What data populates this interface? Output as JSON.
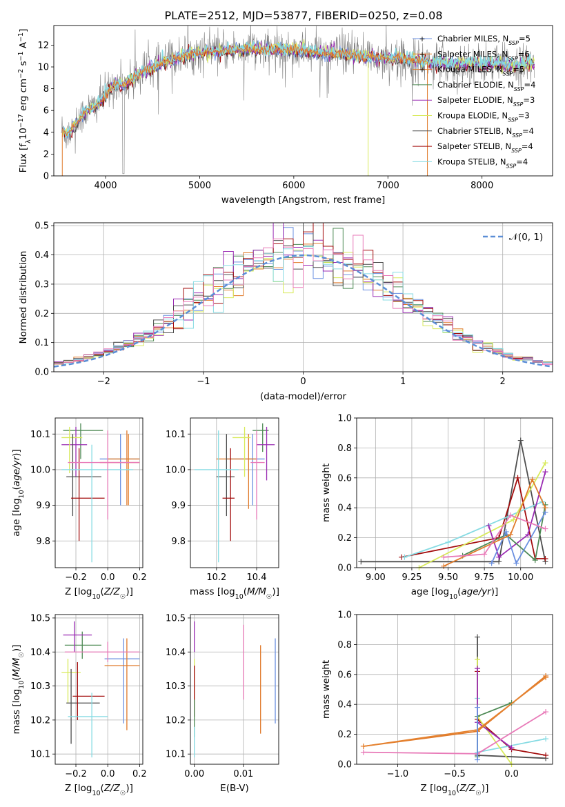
{
  "title": "PLATE=2512, MJD=53877, FIBERID=0250, z=0.08",
  "colors": {
    "Chabrier MILES": "#6a8fe0",
    "Salpeter MILES": "#e5822f",
    "Kroupa MILES": "#e07a2a",
    "Chabrier ELODIE": "#4e8a55",
    "Salpeter ELODIE": "#9a2bb3",
    "Kroupa ELODIE": "#d8ea5a",
    "Chabrier STELIB": "#4d4d4d",
    "Salpeter STELIB": "#a30d0d",
    "Kroupa STELIB": "#86dbe3",
    "pink": "#e87ab8",
    "normal": "#5b8ed6",
    "grid": "#b0b0b0"
  },
  "chart_data": [
    {
      "type": "line",
      "panel": "spectrum",
      "xlabel": "wavelength [Angstrom, rest frame]",
      "ylabel": "Flux [f_λ10^-17 erg cm^-2 s^-1 A^-1]",
      "xlim": [
        3450,
        8750
      ],
      "ylim": [
        0,
        13.8
      ],
      "xticks": [
        "4000",
        "5000",
        "6000",
        "7000",
        "8000"
      ],
      "yticks": [
        "0",
        "2",
        "4",
        "6",
        "8",
        "10",
        "12"
      ],
      "continuum_x": [
        3550,
        3600,
        3700,
        3800,
        3900,
        4000,
        4100,
        4200,
        4300,
        4400,
        4500,
        4700,
        4900,
        5100,
        5300,
        5500,
        5700,
        5900,
        6100,
        6300,
        6500,
        6700,
        6900,
        7100,
        7300,
        7500,
        7700,
        7900,
        8100,
        8300,
        8500
      ],
      "continuum_y": [
        4.2,
        3.8,
        5.0,
        6.0,
        6.4,
        7.5,
        8.5,
        8.4,
        9.0,
        9.6,
        10.0,
        10.7,
        11.2,
        11.4,
        11.5,
        11.7,
        11.6,
        11.6,
        11.5,
        11.3,
        11.2,
        11.0,
        10.8,
        10.8,
        10.6,
        10.4,
        10.3,
        10.4,
        10.3,
        10.2,
        10.3
      ],
      "legend": [
        {
          "label": "Chabrier MILES, N",
          "sub": "SSP",
          "eq": "=5"
        },
        {
          "label": "Salpeter MILES, N",
          "sub": "SSP",
          "eq": "=6"
        },
        {
          "label": "Kroupa MILES, N",
          "sub": "SSP",
          "eq": "=5"
        },
        {
          "label": "Chabrier ELODIE, N",
          "sub": "SSP",
          "eq": "=4"
        },
        {
          "label": "Salpeter ELODIE, N",
          "sub": "SSP",
          "eq": "=3"
        },
        {
          "label": "Kroupa ELODIE, N",
          "sub": "SSP",
          "eq": "=3"
        },
        {
          "label": "Chabrier STELIB, N",
          "sub": "SSP",
          "eq": "=4"
        },
        {
          "label": "Salpeter STELIB, N",
          "sub": "SSP",
          "eq": "=4"
        },
        {
          "label": "Kroupa STELIB, N",
          "sub": "SSP",
          "eq": "=4"
        }
      ]
    },
    {
      "type": "histogram",
      "panel": "residuals",
      "xlabel": "(data-model)/error",
      "ylabel": "Normed distribution",
      "xlim": [
        -2.5,
        2.5
      ],
      "ylim": [
        0,
        0.51
      ],
      "xticks": [
        "−2",
        "−1",
        "0",
        "1",
        "2"
      ],
      "yticks": [
        "0.0",
        "0.1",
        "0.2",
        "0.3",
        "0.4",
        "0.5"
      ],
      "legend": "𝒩(0, 1)",
      "bin_width": 0.1,
      "reference_curve": "standard normal"
    },
    {
      "type": "scatter",
      "panel": "age_vs_Z",
      "xlabel": "Z [log10(Z/Z☉)]",
      "ylabel": "age [log10(age/yr)]",
      "xlim": [
        -0.33,
        0.22
      ],
      "ylim": [
        9.725,
        10.145
      ],
      "xticks": [
        "−0.2",
        "0.0",
        "0.2"
      ],
      "yticks": [
        "9.8",
        "9.9",
        "10.0",
        "10.1"
      ],
      "points": [
        {
          "series": "Chabrier MILES",
          "x": 0.08,
          "y": 10.03,
          "x0": -0.05,
          "x1": 0.2,
          "y0": 9.9,
          "y1": 10.1
        },
        {
          "series": "Salpeter MILES",
          "x": 0.13,
          "y": 10.03,
          "x0": 0.0,
          "x1": 0.2,
          "y0": 9.9,
          "y1": 10.1
        },
        {
          "series": "Kroupa MILES",
          "x": 0.12,
          "y": 10.02,
          "x0": -0.05,
          "x1": 0.2,
          "y0": 9.9,
          "y1": 10.11
        },
        {
          "series": "Chabrier ELODIE",
          "x": -0.17,
          "y": 10.11,
          "x0": -0.28,
          "x1": -0.03,
          "y0": 10.03,
          "y1": 10.13
        },
        {
          "series": "Salpeter ELODIE",
          "x": -0.2,
          "y": 10.07,
          "x0": -0.29,
          "x1": -0.13,
          "y0": 9.98,
          "y1": 10.12
        },
        {
          "series": "Kroupa ELODIE",
          "x": -0.24,
          "y": 10.09,
          "x0": -0.29,
          "x1": -0.16,
          "y0": 9.99,
          "y1": 10.12
        },
        {
          "series": "Chabrier STELIB",
          "x": -0.22,
          "y": 9.98,
          "x0": -0.26,
          "x1": -0.04,
          "y0": 9.87,
          "y1": 10.1
        },
        {
          "series": "Salpeter STELIB",
          "x": -0.18,
          "y": 9.92,
          "x0": -0.23,
          "x1": -0.02,
          "y0": 9.8,
          "y1": 10.06
        },
        {
          "series": "Kroupa STELIB",
          "x": -0.1,
          "y": 10.0,
          "x0": -0.29,
          "x1": 0.16,
          "y0": 9.74,
          "y1": 10.07
        },
        {
          "series": "pink",
          "x": 0.0,
          "y": 10.02,
          "x0": -0.25,
          "x1": 0.2,
          "y0": 9.86,
          "y1": 10.11
        }
      ]
    },
    {
      "type": "scatter",
      "panel": "age_vs_mass",
      "xlabel": "mass [log10(M/M☉)]",
      "ylabel": "",
      "xlim": [
        10.07,
        10.51
      ],
      "ylim": [
        9.725,
        10.145
      ],
      "xticks": [
        "10.2",
        "10.4"
      ],
      "yticks": [
        "9.8",
        "9.9",
        "10.0",
        "10.1"
      ],
      "points": [
        {
          "series": "Chabrier MILES",
          "x": 10.38,
          "y": 10.03,
          "x0": 10.25,
          "x1": 10.44,
          "y0": 9.9,
          "y1": 10.1
        },
        {
          "series": "Kroupa MILES",
          "x": 10.36,
          "y": 10.03,
          "x0": 10.2,
          "x1": 10.4,
          "y0": 9.89,
          "y1": 10.1
        },
        {
          "series": "Chabrier ELODIE",
          "x": 10.43,
          "y": 10.11,
          "x0": 10.38,
          "x1": 10.46,
          "y0": 10.05,
          "y1": 10.13
        },
        {
          "series": "Salpeter ELODIE",
          "x": 10.45,
          "y": 10.07,
          "x0": 10.4,
          "x1": 10.49,
          "y0": 9.97,
          "y1": 10.12
        },
        {
          "series": "Kroupa ELODIE",
          "x": 10.34,
          "y": 10.09,
          "x0": 10.28,
          "x1": 10.37,
          "y0": 9.98,
          "y1": 10.12
        },
        {
          "series": "Chabrier STELIB",
          "x": 10.25,
          "y": 9.98,
          "x0": 10.2,
          "x1": 10.29,
          "y0": 9.87,
          "y1": 10.1
        },
        {
          "series": "Salpeter STELIB",
          "x": 10.27,
          "y": 9.92,
          "x0": 10.23,
          "x1": 10.29,
          "y0": 9.8,
          "y1": 10.06
        },
        {
          "series": "Kroupa STELIB",
          "x": 10.21,
          "y": 10.0,
          "x0": 10.09,
          "x1": 10.31,
          "y0": 9.74,
          "y1": 10.11
        },
        {
          "series": "pink",
          "x": 10.4,
          "y": 10.02,
          "x0": 10.37,
          "x1": 10.44,
          "y0": 9.86,
          "y1": 10.11
        }
      ]
    },
    {
      "type": "line",
      "panel": "weight_vs_age",
      "xlabel": "age [log10(age/yr)]",
      "ylabel": "mass weight",
      "xlim": [
        8.87,
        10.22
      ],
      "ylim": [
        0,
        1.0
      ],
      "xticks": [
        "9.00",
        "9.25",
        "9.50",
        "9.75",
        "10.00"
      ],
      "yticks": [
        "0.0",
        "0.2",
        "0.4",
        "0.6",
        "0.8",
        "1.0"
      ],
      "series": [
        {
          "name": "Chabrier STELIB",
          "x": [
            8.9,
            9.85,
            10.0,
            10.17
          ],
          "y": [
            0.04,
            0.04,
            0.85,
            0.04
          ]
        },
        {
          "name": "Salpeter STELIB",
          "x": [
            9.18,
            9.85,
            9.98,
            10.1,
            10.17
          ],
          "y": [
            0.07,
            0.2,
            0.6,
            0.06,
            0.06
          ]
        },
        {
          "name": "Kroupa STELIB",
          "x": [
            9.2,
            9.5,
            10.15,
            10.17
          ],
          "y": [
            0.07,
            0.17,
            0.44,
            0.4
          ]
        },
        {
          "name": "Kroupa ELODIE",
          "x": [
            9.3,
            9.95,
            10.17
          ],
          "y": [
            0.0,
            0.32,
            0.7
          ]
        },
        {
          "name": "Salpeter ELODIE",
          "x": [
            9.78,
            9.85,
            10.05,
            10.17
          ],
          "y": [
            0.28,
            0.07,
            0.22,
            0.64
          ]
        },
        {
          "name": "Chabrier ELODIE",
          "x": [
            9.6,
            9.9,
            10.1,
            10.17
          ],
          "y": [
            0.08,
            0.22,
            0.05,
            0.42
          ]
        },
        {
          "name": "Chabrier MILES",
          "x": [
            9.8,
            9.9,
            9.97,
            10.17
          ],
          "y": [
            0.03,
            0.24,
            0.03,
            0.37
          ]
        },
        {
          "name": "Kroupa MILES",
          "x": [
            9.47,
            9.93,
            10.08,
            10.17
          ],
          "y": [
            0.01,
            0.22,
            0.59,
            0.4
          ]
        },
        {
          "name": "pink",
          "x": [
            9.47,
            9.75,
            9.93,
            10.17
          ],
          "y": [
            0.07,
            0.09,
            0.35,
            0.26
          ]
        }
      ]
    },
    {
      "type": "scatter",
      "panel": "mass_vs_Z",
      "xlabel": "Z [log10(Z/Z☉)]",
      "ylabel": "mass [log10(M/M☉)]",
      "xlim": [
        -0.33,
        0.22
      ],
      "ylim": [
        10.07,
        10.51
      ],
      "xticks": [
        "−0.2",
        "0.0",
        "0.2"
      ],
      "yticks": [
        "10.1",
        "10.2",
        "10.3",
        "10.4",
        "10.5"
      ],
      "points": [
        {
          "series": "Chabrier MILES",
          "x": 0.1,
          "y": 10.38,
          "x0": -0.02,
          "x1": 0.2,
          "y0": 10.19,
          "y1": 10.44
        },
        {
          "series": "Kroupa MILES",
          "x": 0.12,
          "y": 10.36,
          "x0": -0.02,
          "x1": 0.2,
          "y0": 10.17,
          "y1": 10.44
        },
        {
          "series": "Chabrier ELODIE",
          "x": -0.16,
          "y": 10.42,
          "x0": -0.27,
          "x1": -0.04,
          "y0": 10.38,
          "y1": 10.46
        },
        {
          "series": "Salpeter ELODIE",
          "x": -0.21,
          "y": 10.45,
          "x0": -0.28,
          "x1": -0.1,
          "y0": 10.4,
          "y1": 10.49
        },
        {
          "series": "Kroupa ELODIE",
          "x": -0.25,
          "y": 10.34,
          "x0": -0.29,
          "x1": -0.17,
          "y0": 10.25,
          "y1": 10.38
        },
        {
          "series": "Chabrier STELIB",
          "x": -0.23,
          "y": 10.25,
          "x0": -0.26,
          "x1": -0.05,
          "y0": 10.13,
          "y1": 10.35
        },
        {
          "series": "Salpeter STELIB",
          "x": -0.19,
          "y": 10.27,
          "x0": -0.22,
          "x1": -0.02,
          "y0": 10.2,
          "y1": 10.37
        },
        {
          "series": "Kroupa STELIB",
          "x": -0.1,
          "y": 10.21,
          "x0": -0.25,
          "x1": 0.0,
          "y0": 10.09,
          "y1": 10.28
        },
        {
          "series": "pink",
          "x": 0.0,
          "y": 10.4,
          "x0": -0.27,
          "x1": 0.2,
          "y0": 10.37,
          "y1": 10.43
        }
      ]
    },
    {
      "type": "scatter",
      "panel": "mass_vs_ebv",
      "xlabel": "E(B-V)",
      "ylabel": "",
      "xlim": [
        -0.0008,
        0.0172
      ],
      "ylim": [
        10.07,
        10.51
      ],
      "xticks": [
        "0.00",
        "0.01"
      ],
      "yticks": [
        "10.1",
        "10.2",
        "10.3",
        "10.4",
        "10.5"
      ],
      "points": [
        {
          "series": "Salpeter ELODIE",
          "x": 0.0,
          "y": 10.45,
          "y0": 10.4,
          "y1": 10.49
        },
        {
          "series": "Kroupa ELODIE",
          "x": 0.0,
          "y": 10.34,
          "y0": 10.25,
          "y1": 10.38
        },
        {
          "series": "Salpeter STELIB",
          "x": 0.0,
          "y": 10.28,
          "y0": 10.21,
          "y1": 10.36
        },
        {
          "series": "Chabrier ELODIE",
          "x": 0.0,
          "y": 10.2,
          "y0": 10.15,
          "y1": 10.26
        },
        {
          "series": "Kroupa STELIB",
          "x": 0.0,
          "y": 10.14,
          "y0": 10.09,
          "y1": 10.18
        },
        {
          "series": "pink",
          "x": 0.01,
          "y": 10.4,
          "y0": 10.26,
          "y1": 10.48
        },
        {
          "series": "Kroupa MILES",
          "x": 0.0135,
          "y": 10.3,
          "y0": 10.16,
          "y1": 10.42
        },
        {
          "series": "Chabrier MILES",
          "x": 0.0165,
          "y": 10.3,
          "y0": 10.19,
          "y1": 10.44
        }
      ]
    },
    {
      "type": "line",
      "panel": "weight_vs_Z",
      "xlabel": "Z [log10(Z/Z☉)]",
      "ylabel": "mass weight",
      "xlim": [
        -1.36,
        0.36
      ],
      "ylim": [
        0,
        1.0
      ],
      "xticks": [
        "−1.0",
        "−0.5",
        "0.0"
      ],
      "yticks": [
        "0.0",
        "0.2",
        "0.4",
        "0.6",
        "0.8",
        "1.0"
      ],
      "series": [
        {
          "name": "Chabrier STELIB",
          "x": [
            -0.3,
            -0.3,
            0.3
          ],
          "y": [
            0.85,
            0.06,
            0.04
          ]
        },
        {
          "name": "Salpeter STELIB",
          "x": [
            -0.3,
            -0.3,
            0.0,
            0.3
          ],
          "y": [
            0.62,
            0.3,
            0.1,
            0.06
          ]
        },
        {
          "name": "Kroupa STELIB",
          "x": [
            -0.3,
            -0.3,
            0.3
          ],
          "y": [
            0.44,
            0.08,
            0.17
          ]
        },
        {
          "name": "Kroupa ELODIE",
          "x": [
            -0.3,
            -0.3,
            0.0
          ],
          "y": [
            0.7,
            0.32,
            0.0
          ]
        },
        {
          "name": "Salpeter ELODIE",
          "x": [
            -0.3,
            -0.3,
            0.0
          ],
          "y": [
            0.64,
            0.28,
            0.11
          ]
        },
        {
          "name": "Chabrier ELODIE",
          "x": [
            -0.3,
            -0.3,
            0.0
          ],
          "y": [
            0.05,
            0.32,
            0.41
          ]
        },
        {
          "name": "Kroupa MILES",
          "x": [
            -1.3,
            -0.3,
            0.3
          ],
          "y": [
            0.12,
            0.22,
            0.59
          ]
        },
        {
          "name": "Salpeter MILES",
          "x": [
            -1.3,
            -0.3,
            0.3
          ],
          "y": [
            0.12,
            0.23,
            0.58
          ]
        },
        {
          "name": "pink",
          "x": [
            -1.3,
            -0.3,
            0.3
          ],
          "y": [
            0.08,
            0.07,
            0.35
          ]
        },
        {
          "name": "Chabrier MILES",
          "x": [
            -0.3,
            -0.3
          ],
          "y": [
            0.03,
            0.38
          ]
        }
      ]
    }
  ]
}
